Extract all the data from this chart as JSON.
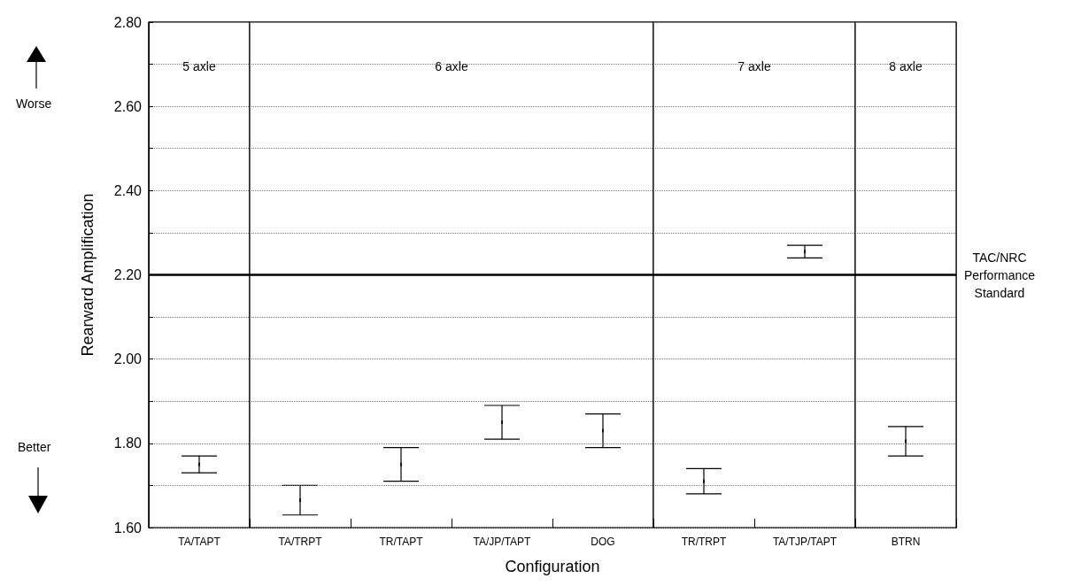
{
  "chart_data": {
    "type": "scatter",
    "xlabel": "Configuration",
    "ylabel": "Rearward Amplification",
    "categories": [
      "TA/TAPT",
      "TA/TRPT",
      "TR/TAPT",
      "TA/JP/TAPT",
      "DOG",
      "TR/TRPT",
      "TA/TJP/TAPT",
      "BTRN"
    ],
    "values": [
      1.75,
      1.665,
      1.75,
      1.85,
      1.83,
      1.71,
      2.255,
      1.805
    ],
    "errors": [
      [
        1.73,
        1.77
      ],
      [
        1.63,
        1.7
      ],
      [
        1.71,
        1.79
      ],
      [
        1.81,
        1.89
      ],
      [
        1.79,
        1.87
      ],
      [
        1.68,
        1.74
      ],
      [
        2.24,
        2.27
      ],
      [
        1.77,
        1.84
      ]
    ],
    "color": "#000000",
    "grid": "y",
    "ylim": [
      1.6,
      2.8
    ],
    "yticks": [
      {
        "value": 1.6,
        "label": "1.60"
      },
      {
        "value": 1.7,
        "label": null
      },
      {
        "value": 1.8,
        "label": "1.80"
      },
      {
        "value": 1.9,
        "label": null
      },
      {
        "value": 2.0,
        "label": "2.00"
      },
      {
        "value": 2.1,
        "label": null
      },
      {
        "value": 2.2,
        "label": "2.20"
      },
      {
        "value": 2.3,
        "label": null
      },
      {
        "value": 2.4,
        "label": "2.40"
      },
      {
        "value": 2.5,
        "label": null
      },
      {
        "value": 2.6,
        "label": "2.60"
      },
      {
        "value": 2.7,
        "label": null
      },
      {
        "value": 2.8,
        "label": "2.80"
      }
    ],
    "ref_lines": [
      {
        "axis": "y",
        "value": 2.2,
        "label": "TAC/NRC\nPerformance\nStandard",
        "color": "#000000"
      }
    ],
    "bands": [
      {
        "axis": "x",
        "from": "TA/TAPT",
        "to": "TA/TAPT",
        "label": "5 axle",
        "color": "#ffffff"
      },
      {
        "axis": "x",
        "from": "TA/TRPT",
        "to": "DOG",
        "label": "6 axle",
        "color": "#ffffff"
      },
      {
        "axis": "x",
        "from": "TR/TRPT",
        "to": "TA/TJP/TAPT",
        "label": "7 axle",
        "color": "#ffffff"
      },
      {
        "axis": "x",
        "from": "BTRN",
        "to": "BTRN",
        "label": "8 axle",
        "color": "#ffffff"
      }
    ],
    "annotations": [
      "Worse",
      "Better"
    ]
  }
}
